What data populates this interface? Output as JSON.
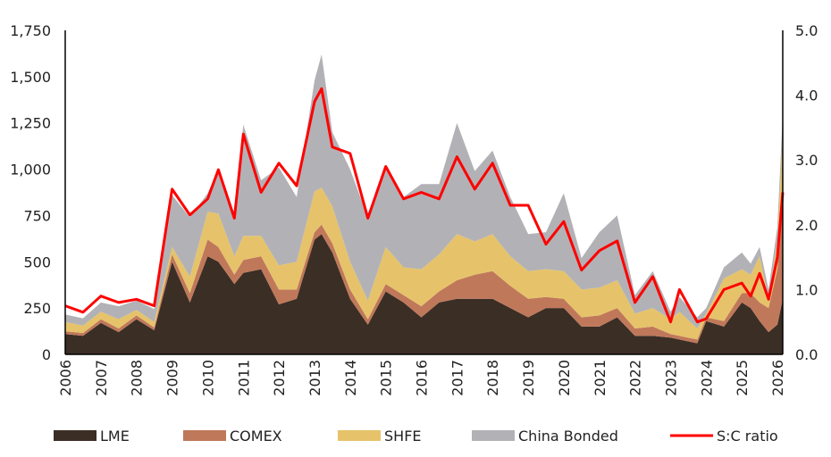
{
  "chart_data": {
    "type": "area",
    "stacked": true,
    "title": "",
    "xlabel": "",
    "ylabel": "",
    "y2label": "",
    "xlim": [
      2006,
      2026.15
    ],
    "ylim": [
      0,
      1750
    ],
    "y2lim": [
      0,
      5
    ],
    "yticks": [
      "0",
      "250",
      "500",
      "750",
      "1,000",
      "1,250",
      "1,500",
      "1,750"
    ],
    "yticks_values": [
      0,
      250,
      500,
      750,
      1000,
      1250,
      1500,
      1750
    ],
    "y2ticks": [
      "0.0",
      "1.0",
      "2.0",
      "3.0",
      "4.0",
      "5.0"
    ],
    "y2ticks_values": [
      0,
      1,
      2,
      3,
      4,
      5
    ],
    "xticks": [
      "2006",
      "2007",
      "2008",
      "2009",
      "2010",
      "2011",
      "2012",
      "2013",
      "2014",
      "2015",
      "2016",
      "2017",
      "2018",
      "2019",
      "2020",
      "2021",
      "2022",
      "2023",
      "2024",
      "2025",
      "2026"
    ],
    "grid": false,
    "legend_position": "bottom",
    "x": [
      2006.0,
      2006.5,
      2007.0,
      2007.5,
      2008.0,
      2008.5,
      2009.0,
      2009.5,
      2010.0,
      2010.3,
      2010.75,
      2011.0,
      2011.5,
      2012.0,
      2012.5,
      2013.0,
      2013.2,
      2013.5,
      2014.0,
      2014.5,
      2015.0,
      2015.5,
      2016.0,
      2016.5,
      2017.0,
      2017.5,
      2018.0,
      2018.5,
      2019.0,
      2019.5,
      2020.0,
      2020.5,
      2021.0,
      2021.5,
      2022.0,
      2022.5,
      2023.0,
      2023.25,
      2023.75,
      2024.0,
      2024.5,
      2025.0,
      2025.25,
      2025.5,
      2025.75,
      2026.0,
      2026.15
    ],
    "series": [
      {
        "name": "LME",
        "color": "#3b2e25",
        "axis": "left",
        "values": [
          110,
          100,
          170,
          120,
          190,
          130,
          500,
          280,
          530,
          500,
          380,
          440,
          460,
          270,
          300,
          620,
          650,
          550,
          300,
          160,
          340,
          280,
          200,
          280,
          300,
          300,
          300,
          250,
          200,
          250,
          250,
          150,
          150,
          200,
          100,
          100,
          90,
          80,
          60,
          180,
          150,
          280,
          250,
          180,
          120,
          160,
          300
        ]
      },
      {
        "name": "COMEX",
        "color": "#c0785a",
        "axis": "left",
        "values": [
          15,
          15,
          20,
          20,
          20,
          15,
          40,
          50,
          90,
          80,
          50,
          70,
          70,
          80,
          50,
          40,
          50,
          50,
          50,
          30,
          40,
          40,
          60,
          60,
          100,
          130,
          150,
          120,
          100,
          60,
          50,
          50,
          60,
          50,
          40,
          50,
          20,
          20,
          20,
          20,
          30,
          50,
          80,
          100,
          130,
          300,
          600
        ]
      },
      {
        "name": "SHFE",
        "color": "#e6c36a",
        "axis": "left",
        "values": [
          50,
          40,
          40,
          50,
          30,
          30,
          40,
          90,
          150,
          180,
          100,
          130,
          110,
          130,
          150,
          220,
          200,
          200,
          150,
          100,
          200,
          150,
          200,
          200,
          250,
          180,
          200,
          160,
          150,
          150,
          150,
          150,
          150,
          150,
          80,
          100,
          80,
          130,
          60,
          20,
          230,
          130,
          100,
          250,
          50,
          150,
          300
        ]
      },
      {
        "name": "China Bonded",
        "color": "#b2b2b6",
        "axis": "left",
        "values": [
          40,
          40,
          50,
          70,
          50,
          70,
          280,
          320,
          100,
          240,
          230,
          600,
          300,
          530,
          350,
          600,
          720,
          400,
          500,
          450,
          420,
          380,
          460,
          380,
          600,
          380,
          450,
          320,
          200,
          200,
          420,
          170,
          300,
          350,
          100,
          200,
          40,
          80,
          60,
          30,
          60,
          90,
          60,
          50,
          50,
          80,
          100
        ]
      },
      {
        "name": "S:C ratio",
        "color": "#ff0000",
        "axis": "right",
        "type": "line",
        "values": [
          0.75,
          0.65,
          0.9,
          0.8,
          0.85,
          0.75,
          2.55,
          2.15,
          2.4,
          2.85,
          2.1,
          3.4,
          2.5,
          2.95,
          2.6,
          3.9,
          4.1,
          3.2,
          3.1,
          2.1,
          2.9,
          2.4,
          2.5,
          2.4,
          3.05,
          2.55,
          2.95,
          2.3,
          2.3,
          1.7,
          2.05,
          1.3,
          1.6,
          1.75,
          0.8,
          1.2,
          0.5,
          1.0,
          0.5,
          0.55,
          1.0,
          1.1,
          0.9,
          1.25,
          0.85,
          1.5,
          2.5
        ]
      }
    ]
  }
}
